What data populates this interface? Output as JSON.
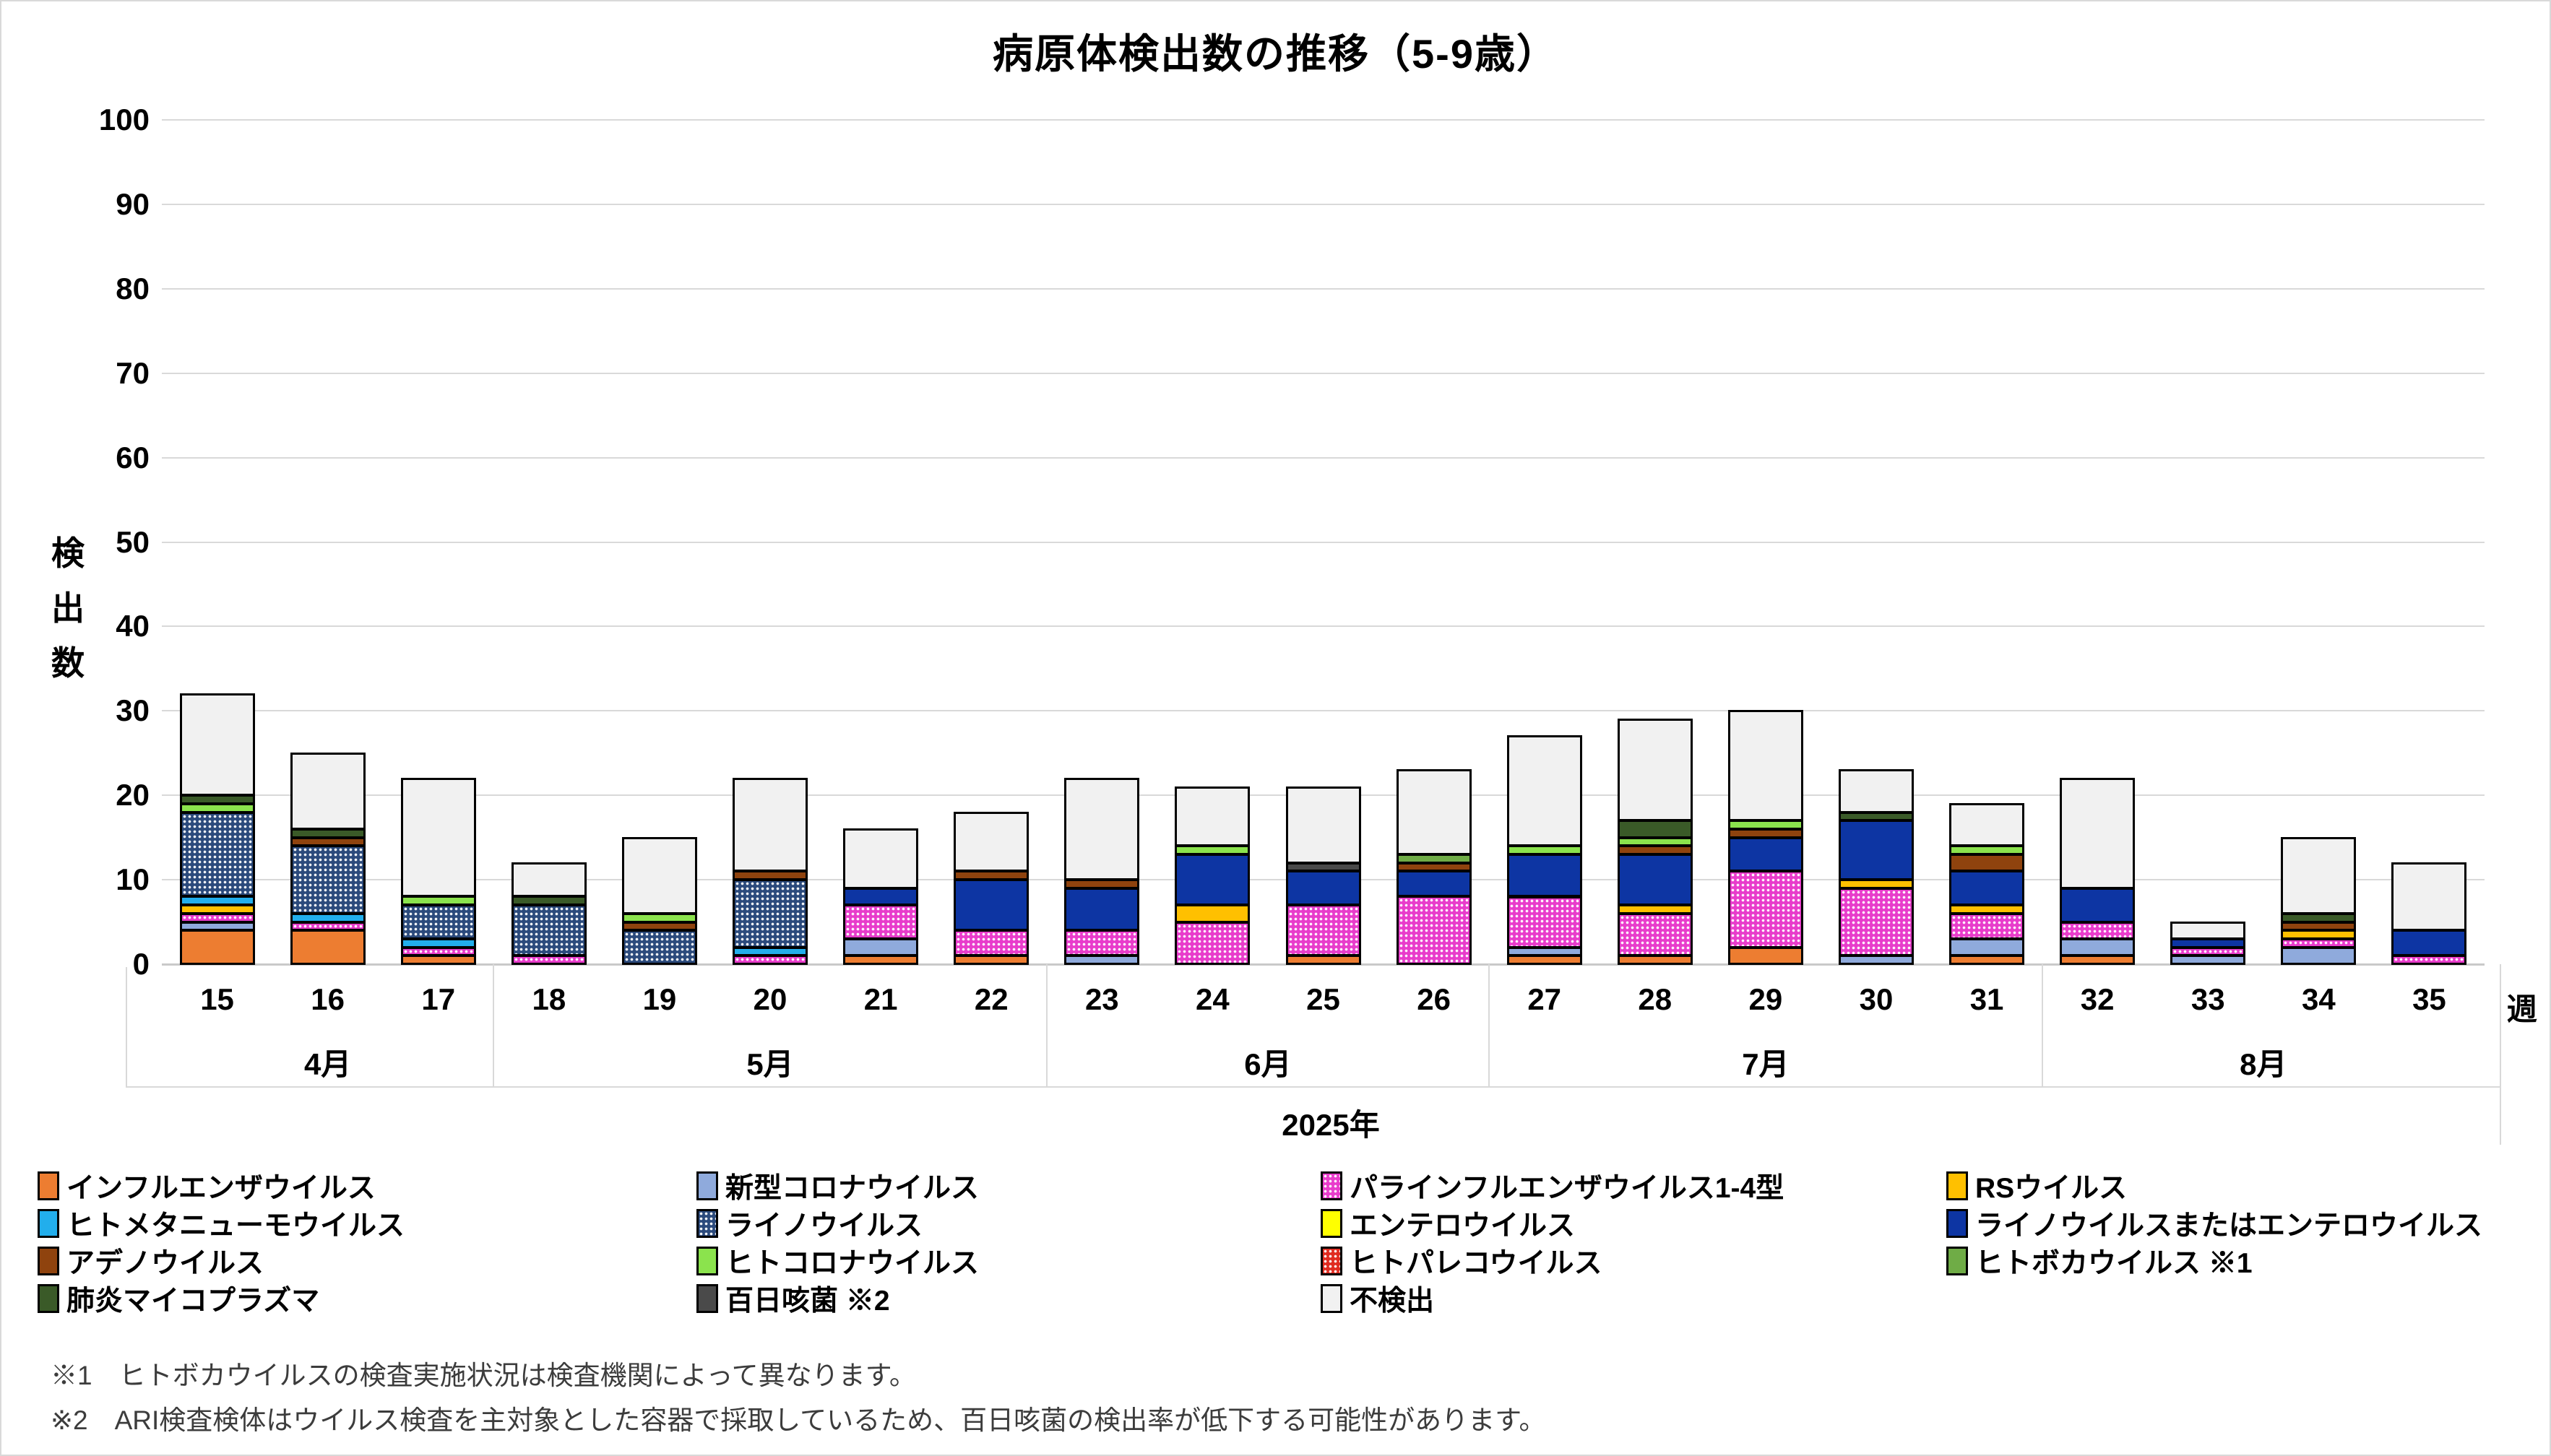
{
  "title": "病原体検出数の推移（5-9歳）",
  "y_axis": {
    "label": "検出数",
    "ticks": [
      0,
      10,
      20,
      30,
      40,
      50,
      60,
      70,
      80,
      90,
      100
    ]
  },
  "x_axis": {
    "unit_label": "週",
    "year_label": "2025年"
  },
  "chart_data": {
    "type": "bar",
    "stacked": true,
    "title": "病原体検出数の推移（5-9歳）",
    "ylabel": "検出数",
    "xlabel": "週",
    "ylim": [
      0,
      100
    ],
    "grid": true,
    "categories": [
      15,
      16,
      17,
      18,
      19,
      20,
      21,
      22,
      23,
      24,
      25,
      26,
      27,
      28,
      29,
      30,
      31,
      32,
      33,
      34,
      35
    ],
    "totals": [
      32,
      25,
      22,
      12,
      15,
      22,
      16,
      18,
      22,
      21,
      21,
      23,
      27,
      29,
      30,
      23,
      19,
      22,
      5,
      15,
      12
    ],
    "month_groups": [
      {
        "label": "4月",
        "weeks": [
          15,
          16,
          17
        ]
      },
      {
        "label": "5月",
        "weeks": [
          18,
          19,
          20,
          21,
          22
        ]
      },
      {
        "label": "6月",
        "weeks": [
          23,
          24,
          25,
          26
        ]
      },
      {
        "label": "7月",
        "weeks": [
          27,
          28,
          29,
          30,
          31
        ]
      },
      {
        "label": "8月",
        "weeks": [
          32,
          33,
          34,
          35
        ]
      }
    ],
    "series": [
      {
        "key": "influenza",
        "name": "インフルエンザウイルス",
        "color": "#ED7D31",
        "pattern": "solid",
        "values": [
          4,
          4,
          1,
          0,
          0,
          0,
          1,
          1,
          0,
          0,
          1,
          0,
          1,
          1,
          2,
          0,
          1,
          1,
          0,
          0,
          0
        ]
      },
      {
        "key": "covid",
        "name": "新型コロナウイルス",
        "color": "#8FAADC",
        "pattern": "solid",
        "values": [
          1,
          0,
          0,
          0,
          0,
          0,
          2,
          0,
          1,
          0,
          0,
          0,
          1,
          0,
          0,
          1,
          2,
          2,
          1,
          2,
          0
        ]
      },
      {
        "key": "parainfluenza",
        "name": "パラインフルエンザウイルス1-4型",
        "color": "#E83CCB",
        "pattern": "dots",
        "values": [
          1,
          1,
          1,
          1,
          0,
          1,
          4,
          3,
          3,
          5,
          6,
          8,
          6,
          5,
          9,
          8,
          3,
          2,
          1,
          1,
          1
        ]
      },
      {
        "key": "rs",
        "name": "RSウイルス",
        "color": "#FFC000",
        "pattern": "solid",
        "values": [
          1,
          0,
          0,
          0,
          0,
          0,
          0,
          0,
          0,
          2,
          0,
          0,
          0,
          1,
          0,
          1,
          1,
          0,
          0,
          1,
          0
        ]
      },
      {
        "key": "hmpv",
        "name": "ヒトメタニューモウイルス",
        "color": "#22AEEC",
        "pattern": "solid",
        "values": [
          1,
          1,
          1,
          0,
          0,
          1,
          0,
          0,
          0,
          0,
          0,
          0,
          0,
          0,
          0,
          0,
          0,
          0,
          0,
          0,
          0
        ]
      },
      {
        "key": "rhino",
        "name": "ライノウイルス",
        "color": "#2B4A7C",
        "pattern": "dots",
        "values": [
          10,
          8,
          4,
          6,
          4,
          8,
          0,
          0,
          0,
          0,
          0,
          0,
          0,
          0,
          0,
          0,
          0,
          0,
          0,
          0,
          0
        ]
      },
      {
        "key": "entero",
        "name": "エンテロウイルス",
        "color": "#FFFF00",
        "pattern": "solid",
        "values": [
          0,
          0,
          0,
          0,
          0,
          0,
          0,
          0,
          0,
          0,
          0,
          0,
          0,
          0,
          0,
          0,
          0,
          0,
          0,
          0,
          0
        ]
      },
      {
        "key": "rhino_entero",
        "name": "ライノウイルスまたはエンテロウイルス",
        "color": "#0D35A3",
        "pattern": "solid",
        "values": [
          0,
          0,
          0,
          0,
          0,
          0,
          2,
          6,
          5,
          6,
          4,
          3,
          5,
          6,
          4,
          7,
          4,
          4,
          1,
          0,
          3
        ]
      },
      {
        "key": "adeno",
        "name": "アデノウイルス",
        "color": "#8F430E",
        "pattern": "solid",
        "values": [
          0,
          1,
          0,
          0,
          1,
          1,
          0,
          1,
          1,
          0,
          0,
          1,
          0,
          1,
          1,
          0,
          2,
          0,
          0,
          1,
          0
        ]
      },
      {
        "key": "hcov",
        "name": "ヒトコロナウイルス",
        "color": "#8BE34D",
        "pattern": "solid",
        "values": [
          1,
          0,
          1,
          0,
          1,
          0,
          0,
          0,
          0,
          1,
          0,
          0,
          1,
          1,
          1,
          0,
          1,
          0,
          0,
          0,
          0
        ]
      },
      {
        "key": "parecho",
        "name": "ヒトパレコウイルス",
        "color": "#E02B20",
        "pattern": "dots",
        "values": [
          0,
          0,
          0,
          0,
          0,
          0,
          0,
          0,
          0,
          0,
          0,
          0,
          0,
          0,
          0,
          0,
          0,
          0,
          0,
          0,
          0
        ]
      },
      {
        "key": "boca",
        "name": "ヒトボカウイルス ※1",
        "color": "#6FAC46",
        "pattern": "solid",
        "values": [
          0,
          0,
          0,
          0,
          0,
          0,
          0,
          0,
          0,
          0,
          0,
          1,
          0,
          0,
          0,
          0,
          0,
          0,
          0,
          0,
          0
        ]
      },
      {
        "key": "myco",
        "name": "肺炎マイコプラズマ",
        "color": "#3A5A28",
        "pattern": "solid",
        "values": [
          1,
          1,
          0,
          1,
          0,
          0,
          0,
          0,
          0,
          0,
          0,
          0,
          0,
          2,
          0,
          1,
          0,
          0,
          0,
          1,
          0
        ]
      },
      {
        "key": "pertussis",
        "name": "百日咳菌 ※2",
        "color": "#4A4A4A",
        "pattern": "solid",
        "values": [
          0,
          0,
          0,
          0,
          0,
          0,
          0,
          0,
          0,
          0,
          1,
          0,
          0,
          0,
          0,
          0,
          0,
          0,
          0,
          0,
          0
        ]
      },
      {
        "key": "none",
        "name": "不検出",
        "color": "#F1F1F1",
        "pattern": "solid",
        "values": [
          12,
          9,
          14,
          4,
          9,
          11,
          7,
          7,
          12,
          7,
          9,
          10,
          13,
          12,
          13,
          5,
          5,
          13,
          2,
          9,
          8
        ]
      }
    ]
  },
  "legend": {
    "columns": [
      [
        "influenza",
        "hmpv",
        "adeno",
        "myco"
      ],
      [
        "covid",
        "rhino",
        "hcov",
        "pertussis"
      ],
      [
        "parainfluenza",
        "entero",
        "parecho",
        "none"
      ],
      [
        "rs",
        "rhino_entero",
        "boca"
      ]
    ]
  },
  "footnotes": [
    "※1　ヒトボカウイルスの検査実施状況は検査機関によって異なります。",
    "※2　ARI検査検体はウイルス検査を主対象とした容器で採取しているため、百日咳菌の検出率が低下する可能性があります。"
  ]
}
